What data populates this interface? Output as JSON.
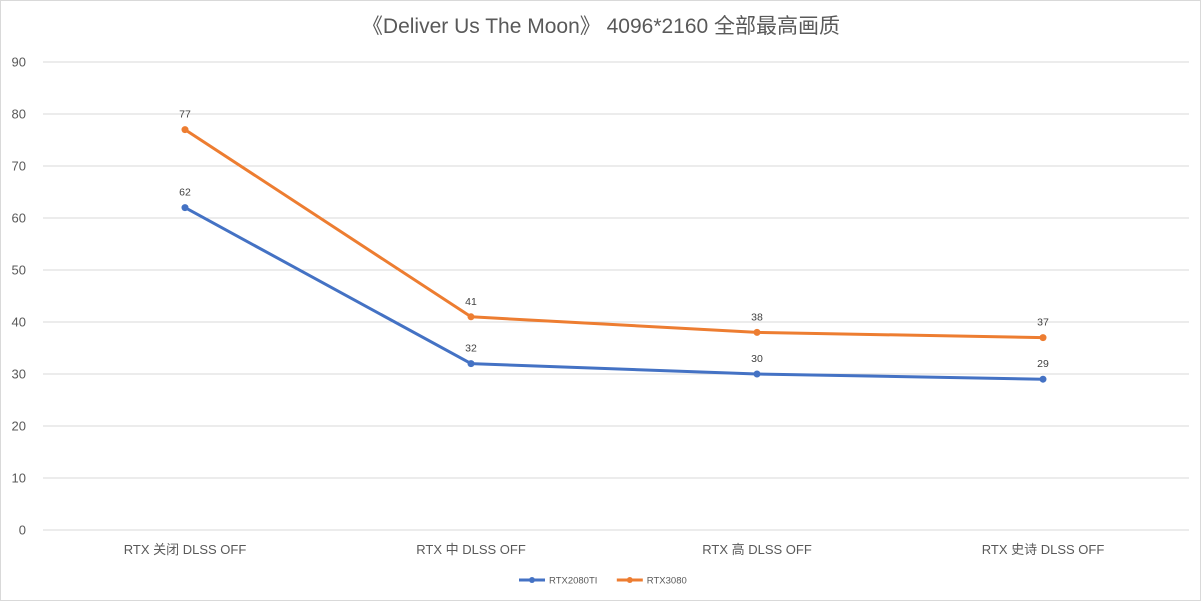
{
  "chart_data": {
    "type": "line",
    "title": "《Deliver Us The Moon》 4096*2160 全部最高画质",
    "categories": [
      "RTX 关闭 DLSS OFF",
      "RTX 中 DLSS OFF",
      "RTX 高 DLSS OFF",
      "RTX 史诗 DLSS OFF"
    ],
    "ylim": [
      0,
      90
    ],
    "yticks": [
      0,
      10,
      20,
      30,
      40,
      50,
      60,
      70,
      80,
      90
    ],
    "grid": true,
    "legend_position": "bottom",
    "series": [
      {
        "name": "RTX2080TI",
        "color": "#4472c4",
        "values": [
          62,
          32,
          30,
          29
        ]
      },
      {
        "name": "RTX3080",
        "color": "#ed7d31",
        "values": [
          77,
          41,
          38,
          37
        ]
      }
    ],
    "gridline_color": "#d9d9d9"
  }
}
